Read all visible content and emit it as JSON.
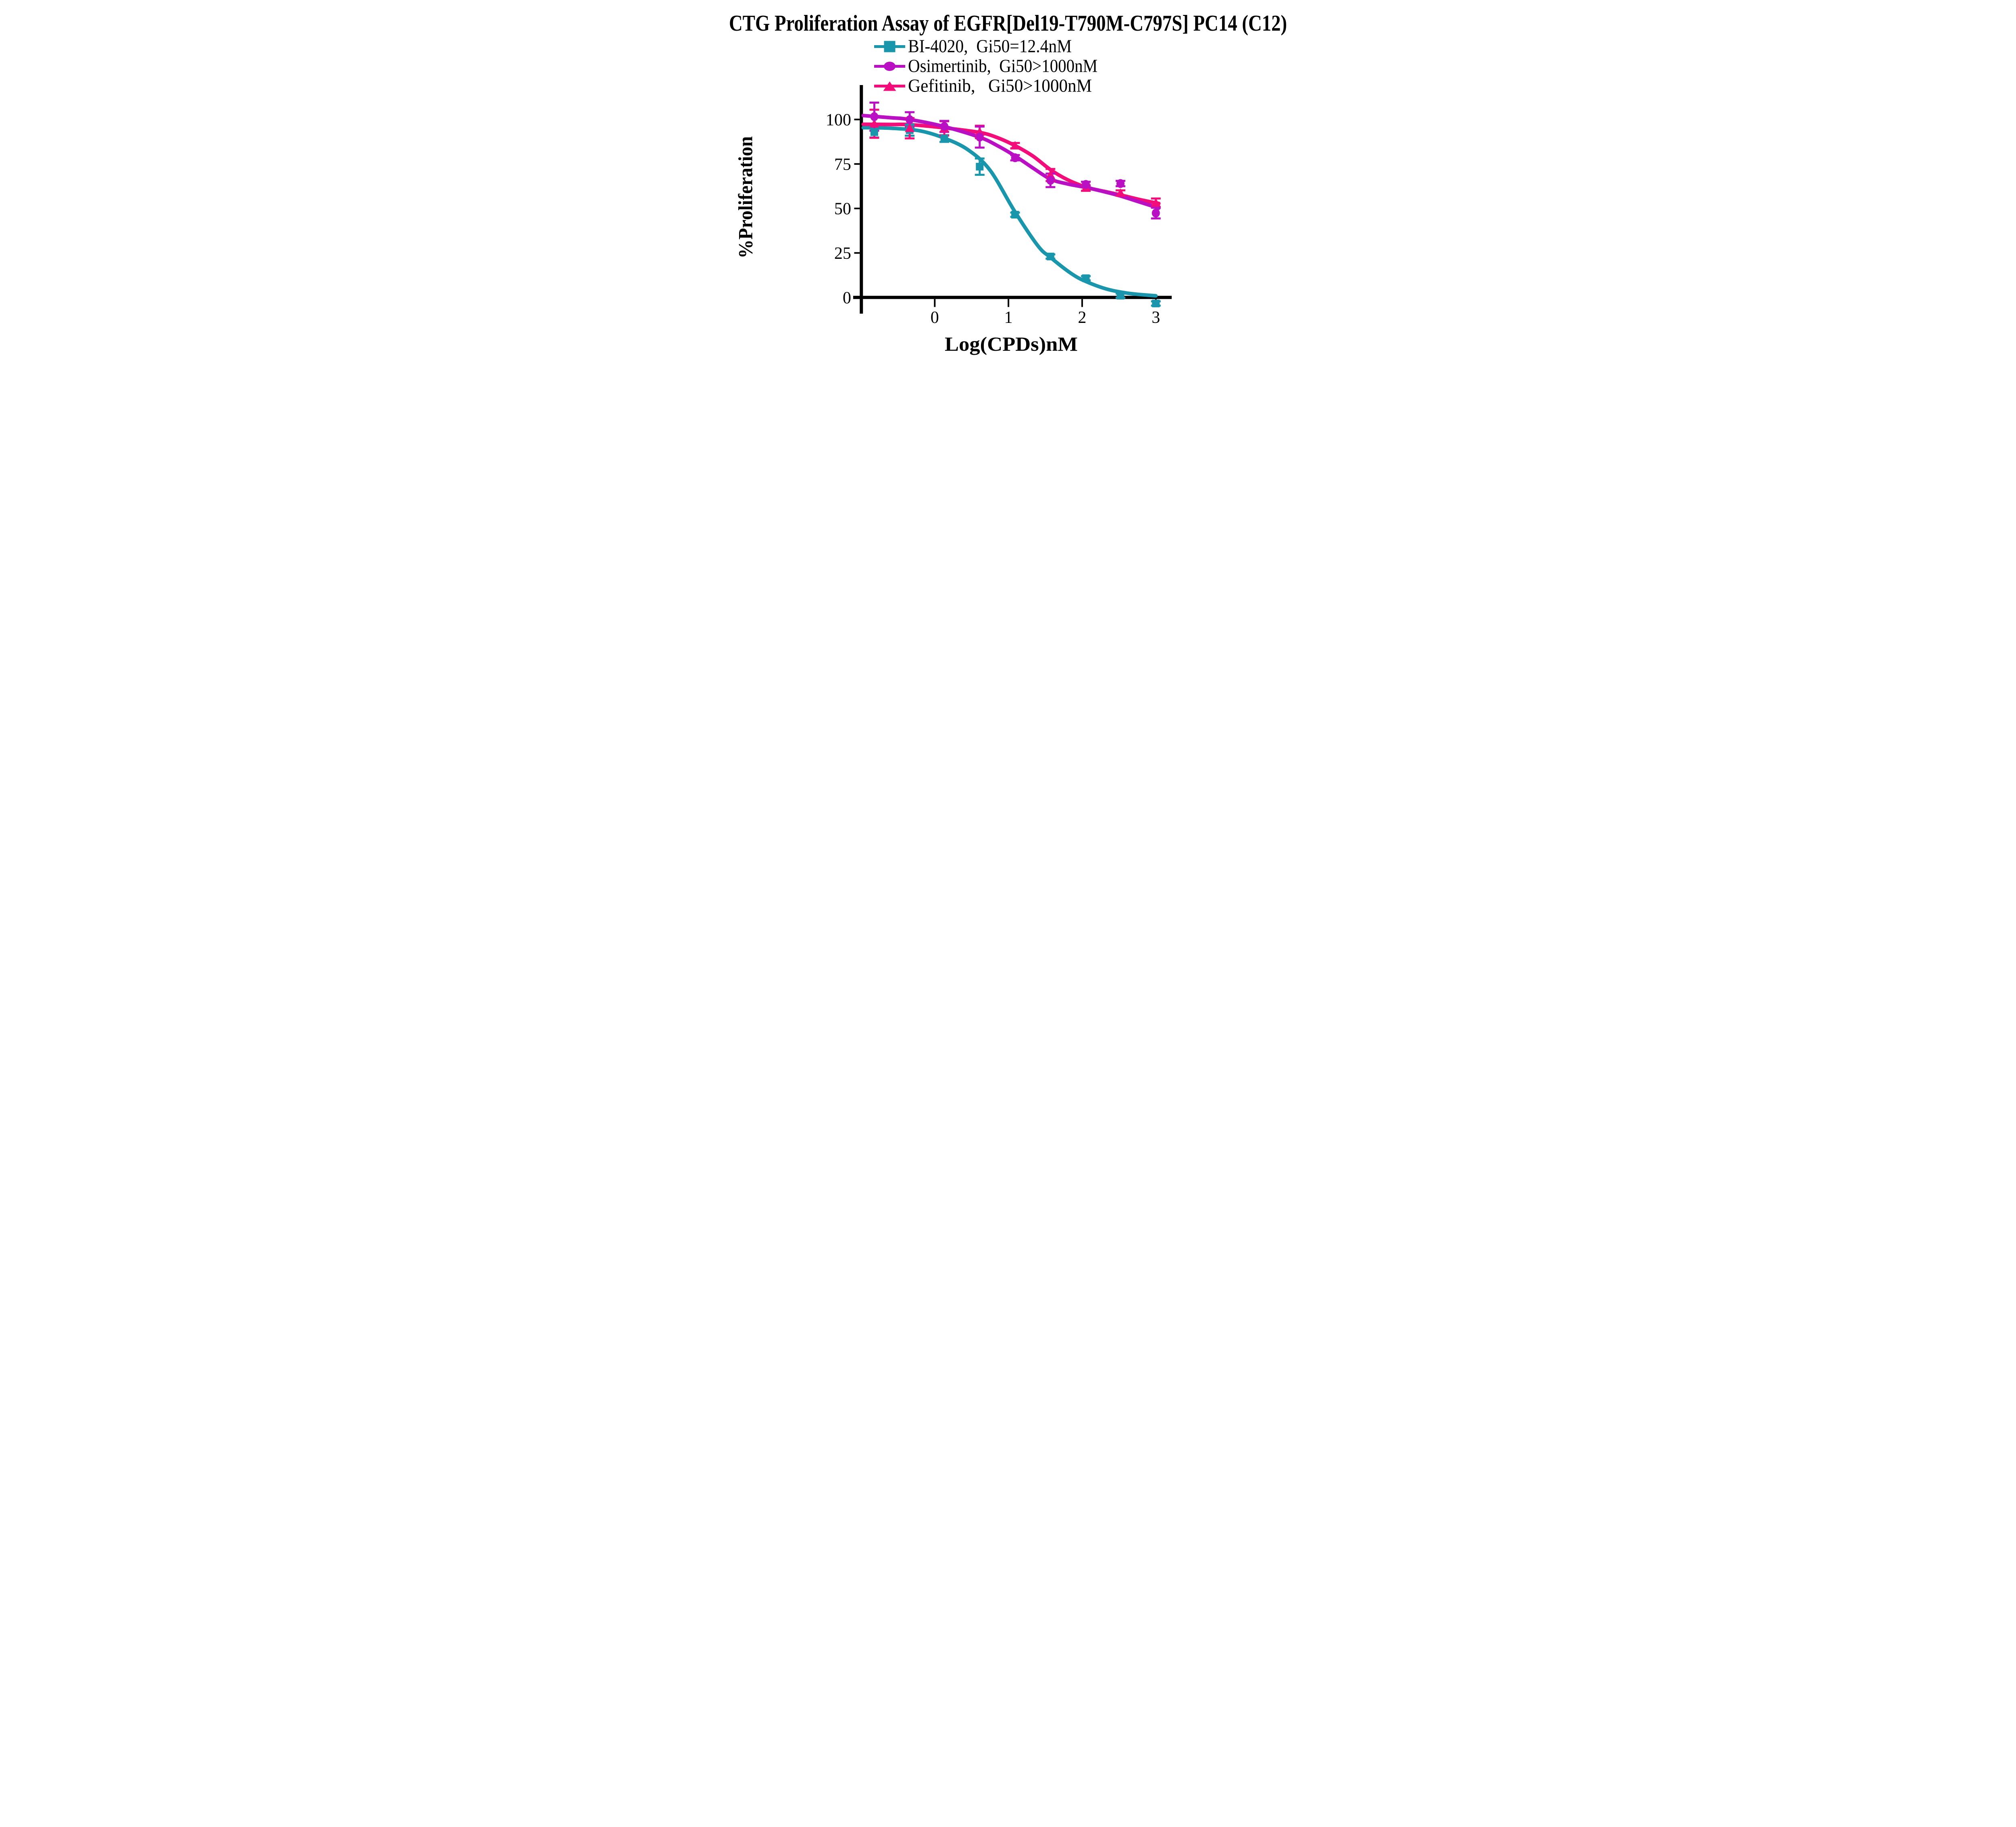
{
  "title": "CTG Proliferation Assay of EGFR[Del19-T790M-C797S] PC14 (C12)",
  "chart_data": {
    "type": "line",
    "title": "CTG Proliferation Assay of EGFR[Del19-T790M-C797S] PC14 (C12)",
    "xlabel": "Log(CPDs)nM",
    "ylabel": "%Proliferation",
    "xticks": [
      0,
      1,
      2,
      3
    ],
    "yticks": [
      0,
      25,
      50,
      75,
      100
    ],
    "xlim": [
      -1.1,
      3.2
    ],
    "ylim": [
      -9,
      119
    ],
    "grid": false,
    "legend_position": "top-left-inside",
    "x": [
      -0.82,
      -0.34,
      0.13,
      0.61,
      1.09,
      1.57,
      2.05,
      2.52,
      3.0
    ],
    "series": [
      {
        "name": "BI-4020",
        "legend_label": "BI-4020,  Gi50=12.4nM",
        "gi50": "Gi50=12.4nM",
        "color": "#1A96AC",
        "marker": "square",
        "y": [
          92.9,
          94.0,
          89.3,
          73.5,
          46.5,
          23.0,
          10.8,
          1.0,
          -3.4
        ],
        "err": [
          3.0,
          3.1,
          1.9,
          4.6,
          1.2,
          1.2,
          1.2,
          1.2,
          1.2
        ],
        "curve": [
          [
            -0.97,
            95.4
          ],
          [
            -0.6,
            95.1
          ],
          [
            -0.2,
            93.6
          ],
          [
            0.13,
            89.5
          ],
          [
            0.45,
            83
          ],
          [
            0.75,
            71.5
          ],
          [
            1.09,
            48
          ],
          [
            1.4,
            29
          ],
          [
            1.57,
            22.5
          ],
          [
            1.85,
            13.5
          ],
          [
            2.05,
            9
          ],
          [
            2.35,
            4.5
          ],
          [
            2.65,
            2.2
          ],
          [
            3.0,
            0.9
          ]
        ]
      },
      {
        "name": "Osimertinib",
        "legend_label": "Osimertinib,  Gi50>1000nM",
        "gi50": "Gi50>1000nM",
        "color": "#BA10C4",
        "marker": "circle",
        "y": [
          101.6,
          99.9,
          96.1,
          90.1,
          78.5,
          65.8,
          63.5,
          64.0,
          47.4
        ],
        "err": [
          7.9,
          4.2,
          3.1,
          5.9,
          1.5,
          3.8,
          1.5,
          1.5,
          3.0
        ],
        "curve": [
          [
            -0.97,
            102.2
          ],
          [
            -0.6,
            101
          ],
          [
            -0.34,
            100
          ],
          [
            0.13,
            96
          ],
          [
            0.61,
            90
          ],
          [
            0.85,
            85.3
          ],
          [
            1.09,
            79.5
          ],
          [
            1.33,
            72.8
          ],
          [
            1.57,
            66.5
          ],
          [
            1.8,
            63.8
          ],
          [
            2.05,
            61.8
          ],
          [
            2.3,
            59.4
          ],
          [
            2.52,
            57
          ],
          [
            2.78,
            53.6
          ],
          [
            3.04,
            50.2
          ]
        ]
      },
      {
        "name": "Gefitinib",
        "legend_label": "Gefitinib,   Gi50>1000nM",
        "gi50": "Gi50>1000nM",
        "color": "#F20D7A",
        "marker": "triangle",
        "y": [
          97.6,
          95.1,
          95.0,
          93.0,
          85.3,
          68.8,
          61.5,
          58.7,
          53.2
        ],
        "err": [
          7.9,
          5.7,
          4.0,
          3.5,
          1.5,
          3.4,
          1.5,
          1.5,
          2.4
        ],
        "curve": [
          [
            -0.97,
            97.3
          ],
          [
            -0.6,
            97.2
          ],
          [
            -0.34,
            97.1
          ],
          [
            0.13,
            95.3
          ],
          [
            0.61,
            92.7
          ],
          [
            0.85,
            89.8
          ],
          [
            1.09,
            85.3
          ],
          [
            1.33,
            79.5
          ],
          [
            1.57,
            71.8
          ],
          [
            1.8,
            66.2
          ],
          [
            2.05,
            62
          ],
          [
            2.3,
            59.6
          ],
          [
            2.52,
            57.6
          ],
          [
            2.78,
            55
          ],
          [
            3.04,
            52.8
          ]
        ]
      }
    ]
  }
}
